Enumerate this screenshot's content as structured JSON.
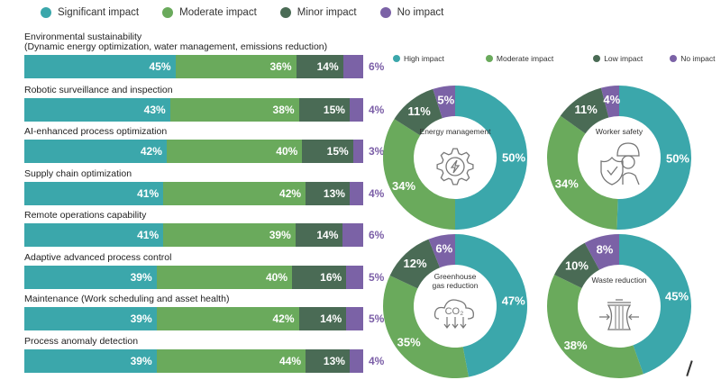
{
  "colors": {
    "significant": "#3ba7ab",
    "moderate": "#6aaa5c",
    "minor": "#4a6b55",
    "none": "#7b62a6"
  },
  "chart_data": [
    {
      "type": "bar",
      "orientation": "horizontal-stacked",
      "legend_position": "top",
      "legend": [
        "Significant impact",
        "Moderate impact",
        "Minor impact",
        "No impact"
      ],
      "categories": [
        [
          "Environmental sustainability",
          "(Dynamic energy optimization, water management, emissions reduction)"
        ],
        [
          "Robotic surveillance and inspection"
        ],
        [
          "AI-enhanced process optimization"
        ],
        [
          "Supply chain optimization"
        ],
        [
          "Remote operations capability"
        ],
        [
          "Adaptive advanced process control"
        ],
        [
          "Maintenance (Work scheduling and asset health)"
        ],
        [
          "Process anomaly detection"
        ]
      ],
      "series": [
        {
          "name": "Significant impact",
          "values": [
            45,
            43,
            42,
            41,
            41,
            39,
            39,
            39
          ]
        },
        {
          "name": "Moderate impact",
          "values": [
            36,
            38,
            40,
            42,
            39,
            40,
            42,
            44
          ]
        },
        {
          "name": "Minor impact",
          "values": [
            14,
            15,
            15,
            13,
            14,
            16,
            14,
            13
          ]
        },
        {
          "name": "No impact",
          "values": [
            6,
            4,
            3,
            4,
            6,
            5,
            5,
            4
          ]
        }
      ],
      "unit": "%"
    },
    {
      "type": "pie",
      "variant": "donut-group",
      "legend_position": "top",
      "legend": [
        "High impact",
        "Moderate impact",
        "Low impact",
        "No impact"
      ],
      "charts": [
        {
          "title": "Energy management",
          "icon": "gear-lightning-icon",
          "values": [
            50,
            34,
            11,
            5
          ]
        },
        {
          "title": "Worker safety",
          "icon": "worker-shield-icon",
          "values": [
            50,
            34,
            11,
            4
          ]
        },
        {
          "title": "Greenhouse gas reduction",
          "title_lines": [
            "Greenhouse",
            "gas reduction"
          ],
          "icon": "co2-cloud-icon",
          "values": [
            47,
            35,
            12,
            6
          ]
        },
        {
          "title": "Waste reduction",
          "icon": "compress-bin-icon",
          "values": [
            45,
            38,
            10,
            8
          ]
        }
      ],
      "unit": "%"
    }
  ]
}
